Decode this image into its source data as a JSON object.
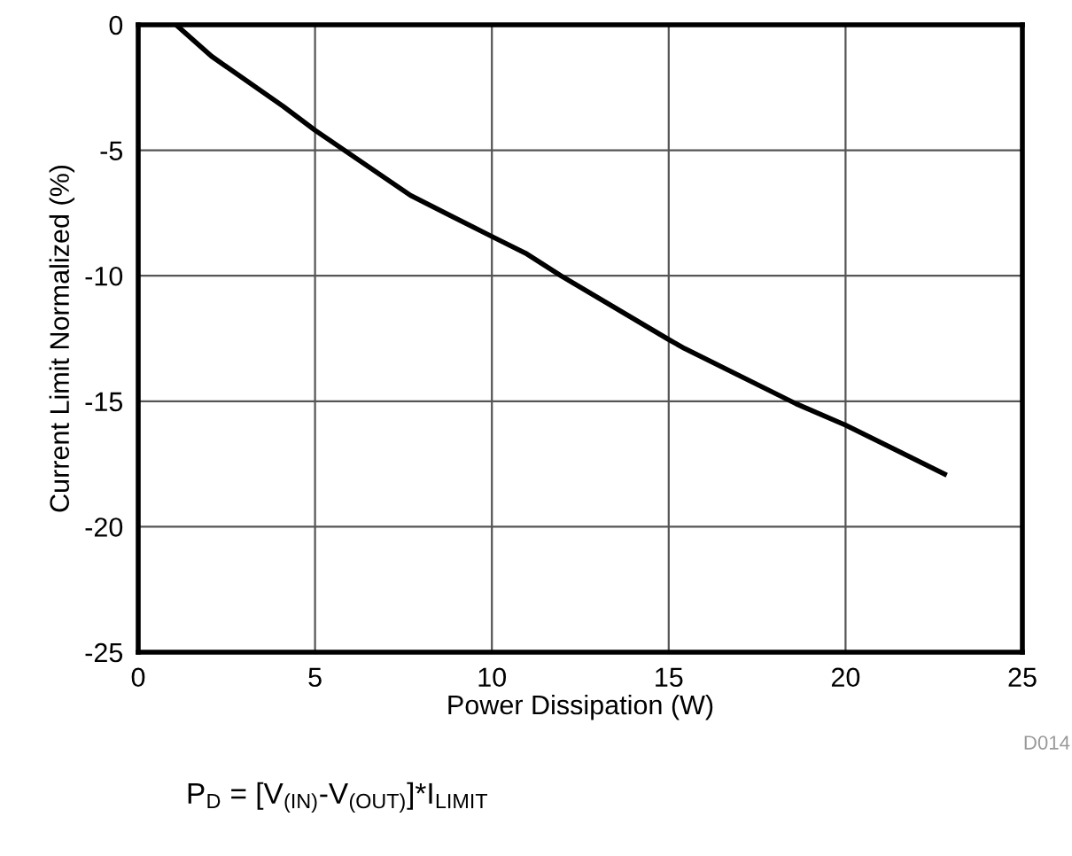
{
  "chart_data": {
    "type": "line",
    "xlabel": "Power Dissipation (W)",
    "ylabel": "Current Limit Normalized (%)",
    "x": [
      1.07,
      2.07,
      4.1,
      5.0,
      7.7,
      9.95,
      10.95,
      11.95,
      14.95,
      15.45,
      18.6,
      20.0,
      22.8
    ],
    "series": [
      {
        "color": "#000000",
        "values": [
          0,
          -1.25,
          -3.25,
          -4.2,
          -6.8,
          -8.4,
          -9.1,
          -10.0,
          -12.5,
          -12.9,
          -15.1,
          -15.95,
          -17.9
        ]
      }
    ],
    "xlim": [
      0,
      25
    ],
    "ylim": [
      -25,
      0
    ],
    "xticks": [
      0,
      5,
      10,
      15,
      20,
      25
    ],
    "yticks": [
      -25,
      -20,
      -15,
      -10,
      -5,
      0
    ],
    "grid": true,
    "marker": "none",
    "line_style": "solid",
    "annotations": [
      "D014",
      "P$_{D}$ = [V$_{(IN)}$-V$_{(OUT)}$]*I$_{LIMIT}$"
    ]
  }
}
